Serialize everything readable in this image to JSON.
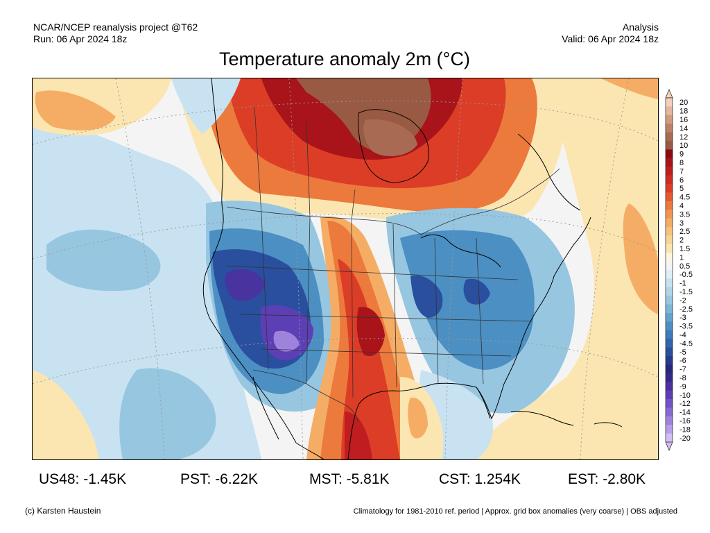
{
  "header": {
    "source_line": "NCAR/NCEP reanalysis project @T62",
    "run_line": "Run: 06 Apr 2024 18z",
    "product_line": "Analysis",
    "valid_line": "Valid: 06 Apr 2024 18z"
  },
  "title": "Temperature anomaly 2m (°C)",
  "legend": {
    "labels": [
      "20",
      "18",
      "16",
      "14",
      "12",
      "10",
      "9",
      "8",
      "7",
      "6",
      "5",
      "4.5",
      "4",
      "3.5",
      "3",
      "2.5",
      "2",
      "1.5",
      "1",
      "0.5",
      "-0.5",
      "-1",
      "-1.5",
      "-2",
      "-2.5",
      "-3",
      "-3.5",
      "-4",
      "-4.5",
      "-5",
      "-6",
      "-7",
      "-8",
      "-9",
      "-10",
      "-12",
      "-14",
      "-16",
      "-18",
      "-20"
    ],
    "colors": [
      "#f2d2bd",
      "#e3b89d",
      "#d09d82",
      "#bc8269",
      "#a96a53",
      "#995a44",
      "#8a0c0e",
      "#a8141a",
      "#bf1d1f",
      "#cf2d23",
      "#dc3d26",
      "#e45a30",
      "#ec7a3d",
      "#f29552",
      "#f5ad66",
      "#f7c27c",
      "#f8d594",
      "#fbe6b1",
      "#fdf5df",
      "#f4f4f4",
      "#dfeef7",
      "#c8e2f1",
      "#b0d4ea",
      "#97c6e1",
      "#7db6d8",
      "#63a3cd",
      "#4c8fc2",
      "#3c7abb",
      "#3165ae",
      "#2a4f9f",
      "#263b8e",
      "#27287b",
      "#352a8b",
      "#48339f",
      "#5c3fb4",
      "#7153c6",
      "#8769d3",
      "#9e82de",
      "#b79fe8",
      "#d0bff2"
    ]
  },
  "stats": [
    {
      "label": "US48",
      "value": "-1.45K"
    },
    {
      "label": "PST",
      "value": "-6.22K"
    },
    {
      "label": "MST",
      "value": "-5.81K"
    },
    {
      "label": "CST",
      "value": "1.254K"
    },
    {
      "label": "EST",
      "value": "-2.80K"
    }
  ],
  "footer": {
    "credit": "(c) Karsten Haustein",
    "note": "Climatology for 1981-2010 ref. period | Approx. grid box anomalies (very coarse) | OBS adjusted"
  },
  "map_palette": {
    "neutral": "#f4f4f4",
    "warm_light": "#fbe6b1",
    "warm": "#f5ad66",
    "orange": "#ec7a3d",
    "red": "#dc3d26",
    "dark_red": "#a8141a",
    "brown": "#995a44",
    "cool_light": "#c8e2f1",
    "cool": "#97c6e1",
    "blue": "#4c8fc2",
    "dark_blue": "#2a4f9f",
    "navy": "#27287b",
    "purple": "#5c3fb4",
    "lavender": "#9e82de",
    "coast": "#000000",
    "border": "#333333",
    "grid": "#9a9a9a"
  }
}
